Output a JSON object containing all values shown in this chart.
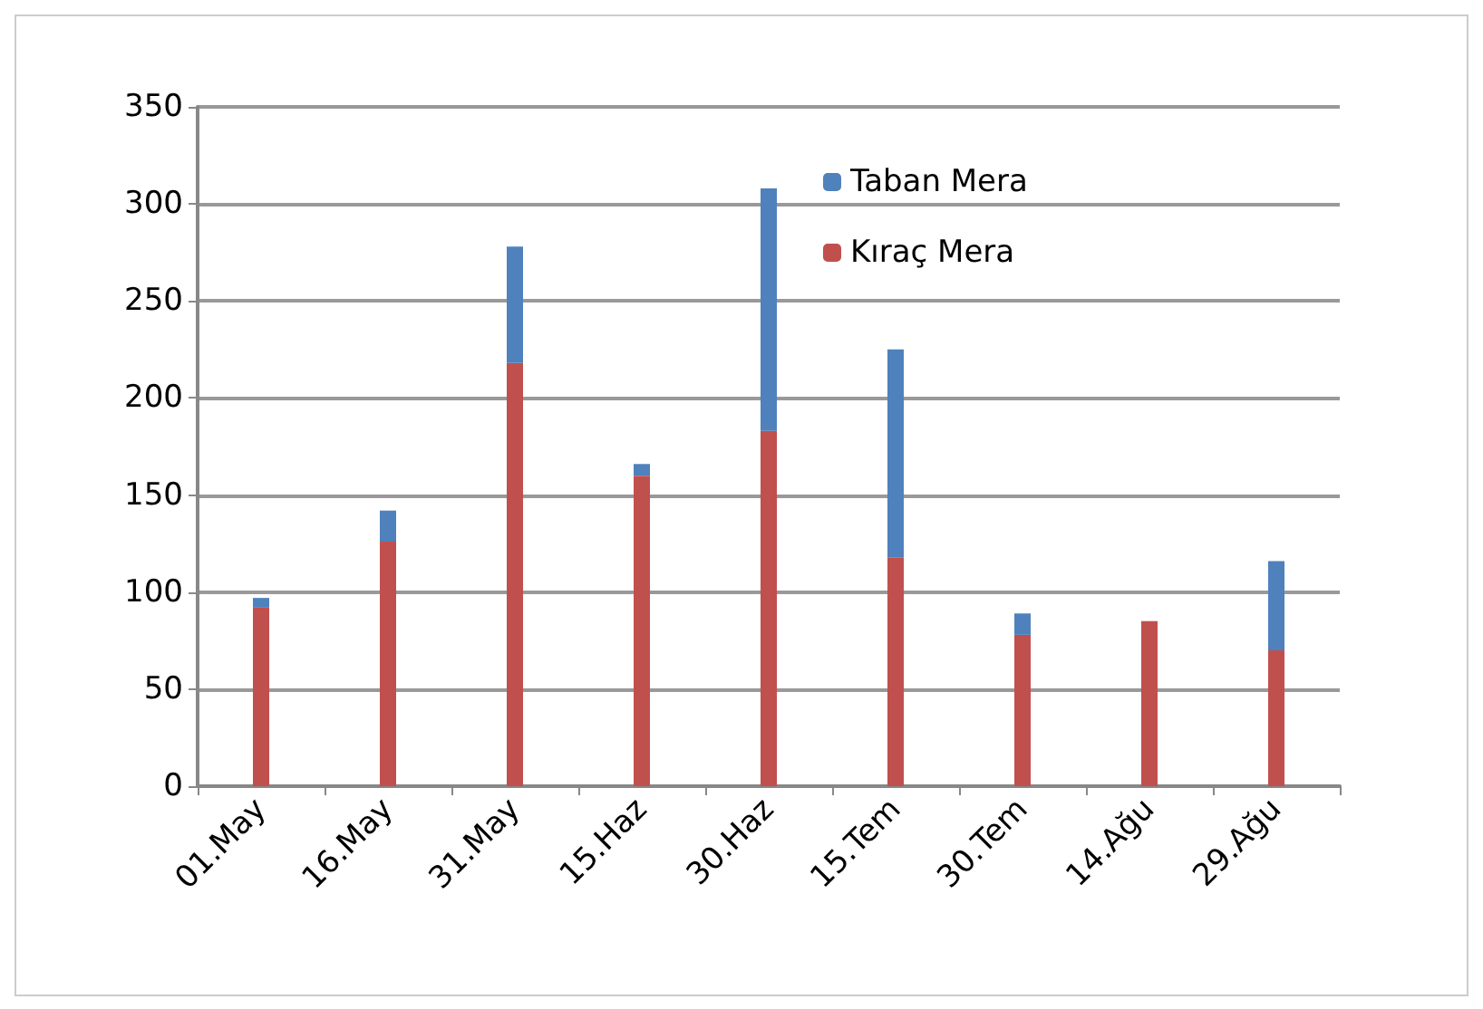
{
  "chart_data": {
    "type": "bar",
    "categories": [
      "01.May",
      "16.May",
      "31.May",
      "15.Haz",
      "30.Haz",
      "15.Tem",
      "30.Tem",
      "14.Ağu",
      "29.Ağu"
    ],
    "series": [
      {
        "name": "Kıraç Mera",
        "color": "#c0504d",
        "values": [
          92,
          126,
          218,
          160,
          183,
          118,
          78,
          85,
          70
        ]
      },
      {
        "name": "Taban Mera",
        "color": "#4f81bd",
        "values": [
          5,
          16,
          60,
          6,
          125,
          107,
          11,
          0,
          46
        ]
      }
    ],
    "stacked": true,
    "ylim": [
      0,
      350
    ],
    "yticks": [
      0,
      50,
      100,
      150,
      200,
      250,
      300,
      350
    ],
    "grid": "y",
    "legend": "top right"
  }
}
